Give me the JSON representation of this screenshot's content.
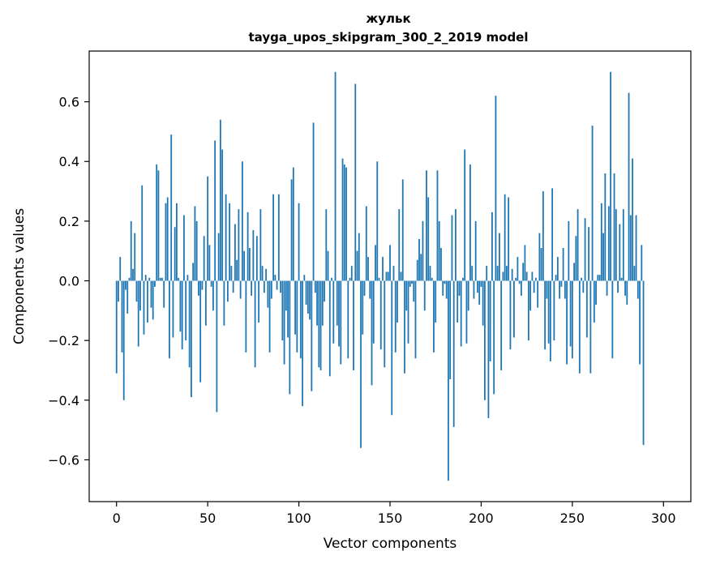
{
  "chart_data": {
    "type": "bar",
    "title": "жульк",
    "subtitle": "tayga_upos_skipgram_300_2_2019 model",
    "xlabel": "Vector components",
    "ylabel": "Components values",
    "xlim": [
      -15,
      315
    ],
    "ylim": [
      -0.74,
      0.77
    ],
    "xticks": [
      0,
      50,
      100,
      150,
      200,
      250,
      300
    ],
    "yticks": [
      -0.6,
      -0.4,
      -0.2,
      0.0,
      0.2,
      0.4,
      0.6
    ],
    "xtick_labels": [
      "0",
      "50",
      "100",
      "150",
      "200",
      "250",
      "300"
    ],
    "ytick_labels": [
      "−0.6",
      "−0.4",
      "−0.2",
      "0.0",
      "0.2",
      "0.4",
      "0.6"
    ],
    "grid": false,
    "legend": "none",
    "bar_color": "#1f77b4",
    "values": [
      -0.31,
      -0.07,
      0.08,
      -0.24,
      -0.4,
      -0.03,
      -0.11,
      0.01,
      0.2,
      0.04,
      0.16,
      -0.07,
      -0.22,
      -0.1,
      0.32,
      -0.18,
      0.02,
      -0.14,
      0.01,
      -0.09,
      -0.13,
      -0.02,
      0.39,
      0.37,
      0.01,
      0.01,
      -0.09,
      0.26,
      0.28,
      -0.26,
      0.49,
      -0.19,
      0.18,
      0.26,
      0.01,
      -0.17,
      -0.23,
      0.22,
      -0.2,
      0.02,
      -0.29,
      -0.39,
      0.06,
      0.25,
      0.2,
      -0.05,
      -0.34,
      -0.03,
      0.15,
      -0.15,
      0.35,
      0.12,
      -0.02,
      -0.1,
      0.47,
      -0.44,
      0.16,
      0.54,
      0.44,
      -0.15,
      0.29,
      -0.07,
      0.26,
      0.05,
      -0.04,
      0.19,
      0.07,
      0.24,
      -0.06,
      0.4,
      0.1,
      -0.24,
      0.23,
      0.11,
      -0.05,
      0.17,
      -0.29,
      0.15,
      -0.14,
      0.24,
      0.05,
      -0.04,
      0.04,
      -0.09,
      -0.24,
      -0.06,
      0.29,
      0.02,
      -0.03,
      0.29,
      -0.04,
      -0.2,
      -0.28,
      -0.1,
      -0.19,
      -0.38,
      0.34,
      0.38,
      -0.18,
      -0.24,
      0.26,
      -0.26,
      -0.42,
      0.02,
      -0.08,
      -0.11,
      -0.13,
      -0.37,
      0.53,
      -0.04,
      -0.15,
      -0.29,
      -0.3,
      -0.15,
      -0.07,
      0.24,
      0.1,
      -0.32,
      0.01,
      -0.21,
      0.7,
      -0.15,
      -0.22,
      -0.28,
      0.41,
      0.39,
      0.38,
      -0.26,
      0.01,
      0.05,
      -0.3,
      0.66,
      0.1,
      0.16,
      -0.56,
      -0.18,
      -0.05,
      0.25,
      0.08,
      -0.06,
      -0.35,
      -0.21,
      0.12,
      0.4,
      0.01,
      -0.23,
      0.08,
      -0.29,
      0.03,
      0.03,
      0.12,
      -0.45,
      0.05,
      -0.24,
      -0.14,
      0.24,
      0.03,
      0.34,
      -0.31,
      -0.1,
      -0.21,
      -0.02,
      -0.01,
      -0.07,
      -0.26,
      0.07,
      0.14,
      0.09,
      0.2,
      -0.1,
      0.37,
      0.28,
      0.05,
      0.01,
      -0.24,
      -0.14,
      0.37,
      0.2,
      0.11,
      -0.05,
      -0.01,
      -0.06,
      -0.67,
      -0.33,
      0.22,
      -0.49,
      0.24,
      -0.14,
      -0.05,
      -0.22,
      0.01,
      0.44,
      -0.21,
      -0.1,
      0.39,
      0.05,
      -0.06,
      0.2,
      -0.04,
      -0.08,
      -0.02,
      -0.15,
      -0.4,
      0.05,
      -0.46,
      -0.27,
      0.23,
      -0.38,
      0.62,
      0.05,
      0.16,
      -0.3,
      0.03,
      0.29,
      0.05,
      0.28,
      -0.23,
      0.04,
      -0.19,
      0.01,
      0.08,
      -0.01,
      -0.05,
      0.06,
      0.12,
      0.03,
      -0.2,
      -0.1,
      0.03,
      -0.04,
      0.01,
      -0.09,
      0.16,
      0.11,
      0.3,
      -0.23,
      -0.06,
      -0.21,
      -0.27,
      0.31,
      -0.2,
      0.02,
      0.08,
      -0.06,
      -0.02,
      0.11,
      -0.06,
      -0.28,
      0.2,
      -0.22,
      -0.26,
      0.06,
      0.15,
      0.24,
      -0.31,
      0.01,
      -0.04,
      0.21,
      -0.19,
      0.18,
      -0.31,
      0.52,
      -0.14,
      -0.08,
      0.02,
      0.02,
      0.26,
      0.16,
      0.36,
      -0.05,
      0.25,
      0.7,
      -0.26,
      0.36,
      0.24,
      -0.04,
      0.19,
      0.01,
      0.24,
      -0.05,
      -0.08,
      0.63,
      0.22,
      0.41,
      0.05,
      0.22,
      -0.06,
      -0.28,
      0.12,
      -0.55
    ]
  }
}
